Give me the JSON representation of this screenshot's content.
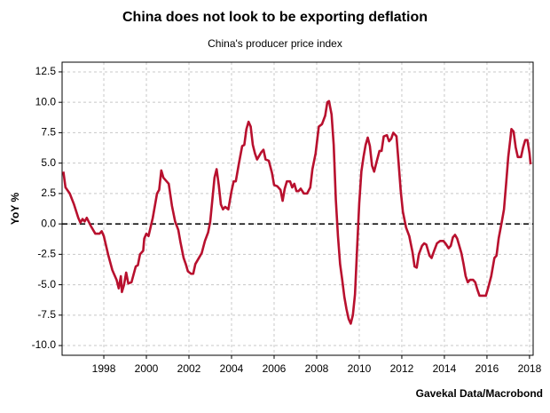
{
  "chart_data": {
    "type": "line",
    "title": "China does not look to be exporting deflation",
    "subtitle": "China's producer price index",
    "y_label": "YoY %",
    "source": "Gavekal Data/Macrobond",
    "xlim": [
      1996.04,
      2018.17
    ],
    "ylim": [
      -10.8,
      13.3
    ],
    "xticks": [
      1998,
      2000,
      2002,
      2004,
      2006,
      2008,
      2010,
      2012,
      2014,
      2016,
      2018
    ],
    "yticks": [
      12.5,
      {
        "value": 10,
        "label": "10.0"
      },
      7.5,
      {
        "value": 5,
        "label": "5.0"
      },
      2.5,
      {
        "value": 0,
        "label": "0.0"
      },
      -2.5,
      {
        "value": -5,
        "label": "-5.0"
      },
      -7.5,
      {
        "value": -10,
        "label": "-10.0"
      }
    ],
    "grid": true,
    "reference_line": 0,
    "series": [
      {
        "color": "#b8102e",
        "x": [
          1996.1,
          1996.2,
          1996.4,
          1996.6,
          1996.8,
          1996.9,
          1997.0,
          1997.1,
          1997.2,
          1997.4,
          1997.6,
          1997.8,
          1997.9,
          1998.0,
          1998.2,
          1998.4,
          1998.6,
          1998.7,
          1998.8,
          1998.85,
          1998.95,
          1999.05,
          1999.15,
          1999.3,
          1999.5,
          1999.6,
          1999.7,
          1999.85,
          1999.9,
          2000.0,
          2000.1,
          2000.3,
          2000.5,
          2000.6,
          2000.7,
          2000.8,
          2000.95,
          2001.05,
          2001.2,
          2001.35,
          2001.5,
          2001.6,
          2001.75,
          2001.85,
          2001.95,
          2002.1,
          2002.2,
          2002.3,
          2002.5,
          2002.6,
          2002.75,
          2002.9,
          2003.0,
          2003.1,
          2003.2,
          2003.3,
          2003.4,
          2003.5,
          2003.6,
          2003.7,
          2003.85,
          2004.0,
          2004.1,
          2004.2,
          2004.35,
          2004.5,
          2004.6,
          2004.7,
          2004.8,
          2004.9,
          2005.0,
          2005.1,
          2005.2,
          2005.4,
          2005.5,
          2005.6,
          2005.75,
          2005.9,
          2006.0,
          2006.15,
          2006.3,
          2006.4,
          2006.5,
          2006.6,
          2006.75,
          2006.85,
          2006.95,
          2007.05,
          2007.15,
          2007.25,
          2007.4,
          2007.55,
          2007.7,
          2007.8,
          2007.95,
          2008.1,
          2008.25,
          2008.4,
          2008.5,
          2008.58,
          2008.7,
          2008.8,
          2008.9,
          2009.0,
          2009.1,
          2009.2,
          2009.3,
          2009.4,
          2009.5,
          2009.6,
          2009.7,
          2009.8,
          2009.9,
          2010.0,
          2010.1,
          2010.2,
          2010.3,
          2010.4,
          2010.5,
          2010.6,
          2010.7,
          2010.8,
          2010.95,
          2011.05,
          2011.15,
          2011.3,
          2011.4,
          2011.5,
          2011.6,
          2011.75,
          2011.85,
          2011.95,
          2012.05,
          2012.2,
          2012.35,
          2012.5,
          2012.6,
          2012.7,
          2012.8,
          2012.95,
          2013.05,
          2013.15,
          2013.3,
          2013.4,
          2013.5,
          2013.65,
          2013.8,
          2013.95,
          2014.05,
          2014.2,
          2014.3,
          2014.4,
          2014.5,
          2014.6,
          2014.7,
          2014.8,
          2014.9,
          2015.0,
          2015.1,
          2015.2,
          2015.35,
          2015.45,
          2015.55,
          2015.65,
          2015.8,
          2015.95,
          2016.05,
          2016.2,
          2016.35,
          2016.45,
          2016.55,
          2016.7,
          2016.8,
          2016.9,
          2017.0,
          2017.1,
          2017.15,
          2017.25,
          2017.35,
          2017.45,
          2017.6,
          2017.7,
          2017.8,
          2017.9,
          2018.0,
          2018.05
        ],
        "values": [
          4.3,
          3.0,
          2.5,
          1.6,
          0.5,
          0.1,
          0.4,
          0.2,
          0.5,
          -0.2,
          -0.8,
          -0.8,
          -0.6,
          -1.0,
          -2.5,
          -3.8,
          -4.6,
          -5.3,
          -4.3,
          -5.6,
          -5.0,
          -4.0,
          -4.9,
          -4.8,
          -3.5,
          -3.4,
          -2.5,
          -2.2,
          -1.2,
          -0.8,
          -1.0,
          0.5,
          2.5,
          2.8,
          4.4,
          3.8,
          3.5,
          3.3,
          1.5,
          0.2,
          -0.5,
          -1.5,
          -2.8,
          -3.3,
          -3.9,
          -4.1,
          -4.1,
          -3.3,
          -2.7,
          -2.4,
          -1.4,
          -0.7,
          0.2,
          2.0,
          3.8,
          4.5,
          3.2,
          1.6,
          1.2,
          1.4,
          1.2,
          2.7,
          3.5,
          3.5,
          5.0,
          6.4,
          6.5,
          7.8,
          8.4,
          8.0,
          6.5,
          5.8,
          5.3,
          5.9,
          6.1,
          5.3,
          5.2,
          4.2,
          3.2,
          3.1,
          2.8,
          1.9,
          2.9,
          3.5,
          3.5,
          3.0,
          3.3,
          2.7,
          2.7,
          2.9,
          2.5,
          2.5,
          3.0,
          4.5,
          5.8,
          8.0,
          8.2,
          8.9,
          10.0,
          10.1,
          9.0,
          6.5,
          2.0,
          -1.0,
          -3.3,
          -4.6,
          -6.0,
          -7.0,
          -7.8,
          -8.2,
          -7.5,
          -5.8,
          -2.0,
          1.7,
          4.3,
          5.5,
          6.5,
          7.1,
          6.4,
          4.8,
          4.3,
          5.0,
          6.0,
          6.0,
          7.2,
          7.3,
          6.8,
          7.0,
          7.5,
          7.2,
          5.0,
          2.7,
          1.0,
          -0.3,
          -1.0,
          -2.3,
          -3.5,
          -3.6,
          -2.5,
          -1.8,
          -1.6,
          -1.7,
          -2.6,
          -2.8,
          -2.3,
          -1.6,
          -1.4,
          -1.4,
          -1.6,
          -2.0,
          -1.8,
          -1.1,
          -0.9,
          -1.2,
          -1.8,
          -2.4,
          -3.3,
          -4.3,
          -4.8,
          -4.6,
          -4.6,
          -4.8,
          -5.4,
          -5.9,
          -5.9,
          -5.9,
          -5.3,
          -4.3,
          -2.8,
          -2.6,
          -1.2,
          0.2,
          1.2,
          3.3,
          5.5,
          7.0,
          7.8,
          7.6,
          6.3,
          5.5,
          5.5,
          6.3,
          6.9,
          6.9,
          5.8,
          4.9
        ]
      }
    ]
  }
}
